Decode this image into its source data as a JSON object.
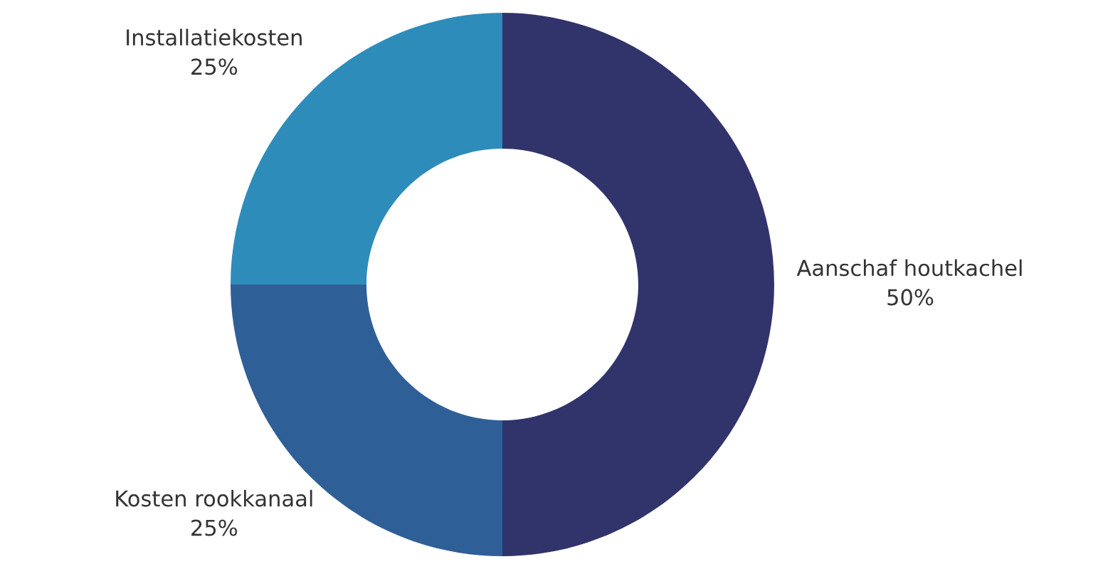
{
  "chart_data": {
    "type": "donut",
    "categories": [
      "Aanschaf houtkachel",
      "Kosten rookkanaal",
      "Installatiekosten"
    ],
    "values": [
      50,
      25,
      25
    ],
    "value_labels": [
      "50%",
      "25%",
      "25%"
    ],
    "colors": [
      "#31336b",
      "#2f5f97",
      "#2e8cbb"
    ]
  }
}
